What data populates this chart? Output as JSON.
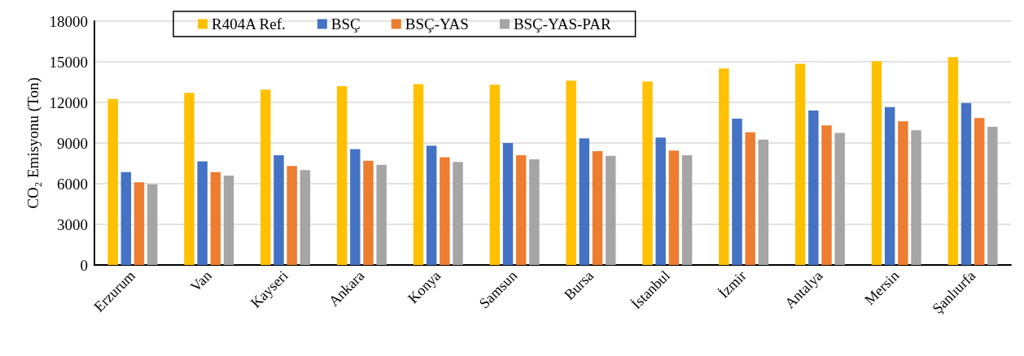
{
  "chart_data": {
    "type": "bar",
    "ylabel": "CO₂ Emisyonu (Ton)",
    "categories": [
      "Erzurum",
      "Van",
      "Kayseri",
      "Ankara",
      "Konya",
      "Samsun",
      "Bursa",
      "İstanbul",
      "İzmir",
      "Antalya",
      "Mersin",
      "Şanlıurfa"
    ],
    "series": [
      {
        "name": "R404A Ref.",
        "color": "#ffc000",
        "values": [
          12250,
          12700,
          12950,
          13200,
          13350,
          13300,
          13600,
          13550,
          14500,
          14850,
          15050,
          15350
        ]
      },
      {
        "name": "BSÇ",
        "color": "#4472c4",
        "values": [
          6850,
          7650,
          8100,
          8550,
          8800,
          9000,
          9350,
          9400,
          10800,
          11400,
          11650,
          11950
        ]
      },
      {
        "name": "BSÇ-YAS",
        "color": "#ed7d31",
        "values": [
          6100,
          6850,
          7300,
          7700,
          7950,
          8100,
          8400,
          8450,
          9800,
          10300,
          10600,
          10850
        ]
      },
      {
        "name": "BSÇ-YAS-PAR",
        "color": "#a5a5a5",
        "values": [
          5950,
          6600,
          7000,
          7400,
          7600,
          7800,
          8050,
          8100,
          9250,
          9750,
          9950,
          10200
        ]
      }
    ],
    "ylim": [
      0,
      18000
    ],
    "yticks": [
      0,
      3000,
      6000,
      9000,
      12000,
      15000,
      18000
    ],
    "grid": "y",
    "legend": "top"
  }
}
